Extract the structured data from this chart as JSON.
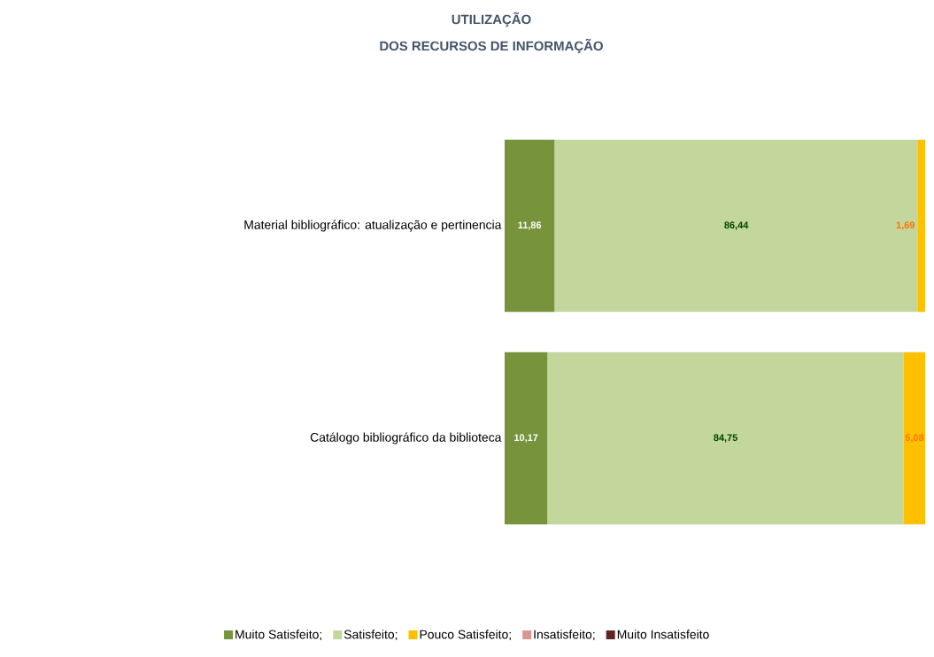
{
  "chart_data": {
    "type": "bar",
    "orientation": "horizontal",
    "stacked": true,
    "title": "UTILIZAÇÃO",
    "subtitle": "DOS RECURSOS DE INFORMAÇÃO",
    "categories": [
      "Material bibliográfico: atualização e pertinencia",
      "Catálogo bibliográfico da biblioteca"
    ],
    "series": [
      {
        "name": "Muito Satisfeito;",
        "color": "#77933c",
        "values": [
          11.86,
          10.17
        ],
        "value_labels": [
          "11,86",
          "10,17"
        ]
      },
      {
        "name": "Satisfeito;",
        "color": "#c3d69b",
        "values": [
          86.44,
          84.75
        ],
        "value_labels": [
          "86,44",
          "84,75"
        ]
      },
      {
        "name": "Pouco Satisfeito;",
        "color": "#ffc000",
        "values": [
          1.69,
          5.08
        ],
        "value_labels": [
          "1,69",
          "5,08"
        ]
      },
      {
        "name": "Insatisfeito;",
        "color": "#d99694",
        "values": [
          null,
          null
        ]
      },
      {
        "name": "Muito Insatisfeito",
        "color": "#632523",
        "values": [
          null,
          null
        ]
      }
    ],
    "legend": "bottom"
  }
}
